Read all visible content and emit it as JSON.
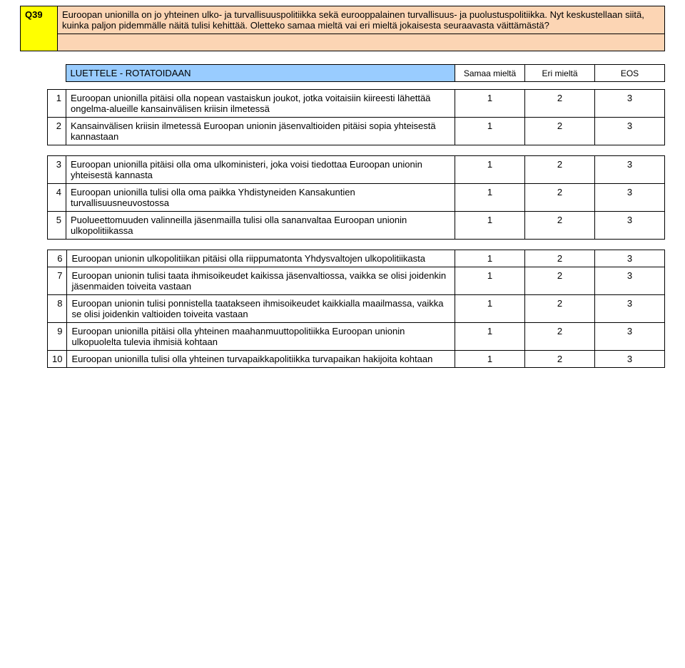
{
  "question": {
    "id": "Q39",
    "text": "Euroopan unionilla on jo yhteinen ulko- ja turvallisuuspolitiikka sekä eurooppalainen turvallisuus- ja puolustuspolitiikka. Nyt keskustellaan siitä, kuinka paljon pidemmälle näitä tulisi kehittää. Oletteko samaa mieltä vai eri mieltä jokaisesta seuraavasta väittämästä?"
  },
  "header": {
    "instruction": "LUETTELE - ROTATOIDAAN",
    "col1": "Samaa mieltä",
    "col2": "Eri mieltä",
    "col3": "EOS"
  },
  "groups": [
    {
      "items": [
        {
          "num": "1",
          "text": "Euroopan unionilla pitäisi olla nopean vastaiskun joukot, jotka voitaisiin  kiireesti lähettää ongelma-alueille kansainvälisen kriisin ilmetessä",
          "v1": "1",
          "v2": "2",
          "v3": "3"
        },
        {
          "num": "2",
          "text": "Kansainvälisen kriisin ilmetessä Euroopan unionin jäsenvaltioiden pitäisi sopia yhteisestä kannastaan",
          "v1": "1",
          "v2": "2",
          "v3": "3"
        }
      ]
    },
    {
      "items": [
        {
          "num": "3",
          "text": "Euroopan unionilla pitäisi olla oma ulkoministeri, joka voisi tiedottaa Euroopan unionin yhteisestä kannasta",
          "v1": "1",
          "v2": "2",
          "v3": "3"
        },
        {
          "num": "4",
          "text": "Euroopan unionilla tulisi olla oma paikka Yhdistyneiden Kansakuntien turvallisuusneuvostossa",
          "v1": "1",
          "v2": "2",
          "v3": "3"
        },
        {
          "num": "5",
          "text": "Puolueettomuuden valinneilla jäsenmailla tulisi olla sananvaltaa Euroopan unionin ulkopolitiikassa",
          "v1": "1",
          "v2": "2",
          "v3": "3"
        }
      ]
    },
    {
      "items": [
        {
          "num": "6",
          "text": "Euroopan unionin ulkopolitiikan pitäisi olla riippumatonta Yhdysvaltojen ulkopolitiikasta",
          "v1": "1",
          "v2": "2",
          "v3": "3"
        },
        {
          "num": "7",
          "text": "Euroopan unionin tulisi taata ihmisoikeudet kaikissa jäsenvaltiossa, vaikka se olisi joidenkin jäsenmaiden toiveita vastaan",
          "v1": "1",
          "v2": "2",
          "v3": "3"
        },
        {
          "num": "8",
          "text": "Euroopan unionin tulisi ponnistella taatakseen ihmisoikeudet kaikkialla maailmassa, vaikka se olisi joidenkin valtioiden toiveita vastaan",
          "v1": "1",
          "v2": "2",
          "v3": "3"
        },
        {
          "num": "9",
          "text": "Euroopan unionilla pitäisi olla yhteinen maahanmuuttopolitiikka Euroopan unionin ulkopuolelta tulevia ihmisiä kohtaan",
          "v1": "1",
          "v2": "2",
          "v3": "3"
        },
        {
          "num": "10",
          "text": "Euroopan unionilla tulisi olla yhteinen turvapaikkapolitiikka turvapaikan hakijoita kohtaan",
          "v1": "1",
          "v2": "2",
          "v3": "3"
        }
      ]
    }
  ],
  "colors": {
    "id_bg": "#ffff00",
    "text_bg": "#fcd5b4",
    "header_bg": "#99ccff",
    "border": "#000000"
  }
}
